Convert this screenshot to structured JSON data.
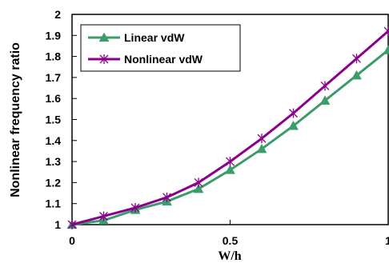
{
  "chart_data": {
    "type": "line",
    "title": "",
    "xlabel": "W/h",
    "ylabel": "Nonlinear frequency ratio",
    "xlim": [
      0,
      1
    ],
    "ylim": [
      1,
      2
    ],
    "x_ticks": [
      "0",
      "0.5",
      "1"
    ],
    "y_ticks": [
      "1",
      "1.1",
      "1.2",
      "1.3",
      "1.4",
      "1.5",
      "1.6",
      "1.7",
      "1.8",
      "1.9",
      "2"
    ],
    "grid": false,
    "legend_position": "top-left",
    "series": [
      {
        "name": "Linear vdW",
        "color": "#3c9c6c",
        "marker": "triangle",
        "x": [
          0,
          0.1,
          0.2,
          0.3,
          0.4,
          0.5,
          0.6,
          0.7,
          0.8,
          0.9,
          1.0
        ],
        "y": [
          1.0,
          1.02,
          1.07,
          1.11,
          1.17,
          1.26,
          1.36,
          1.47,
          1.59,
          1.71,
          1.83
        ]
      },
      {
        "name": "Nonlinear vdW",
        "color": "#8b008b",
        "marker": "asterisk",
        "x": [
          0,
          0.1,
          0.2,
          0.3,
          0.4,
          0.5,
          0.6,
          0.7,
          0.8,
          0.9,
          1.0
        ],
        "y": [
          1.0,
          1.04,
          1.08,
          1.13,
          1.2,
          1.3,
          1.41,
          1.53,
          1.66,
          1.79,
          1.92
        ]
      }
    ]
  }
}
